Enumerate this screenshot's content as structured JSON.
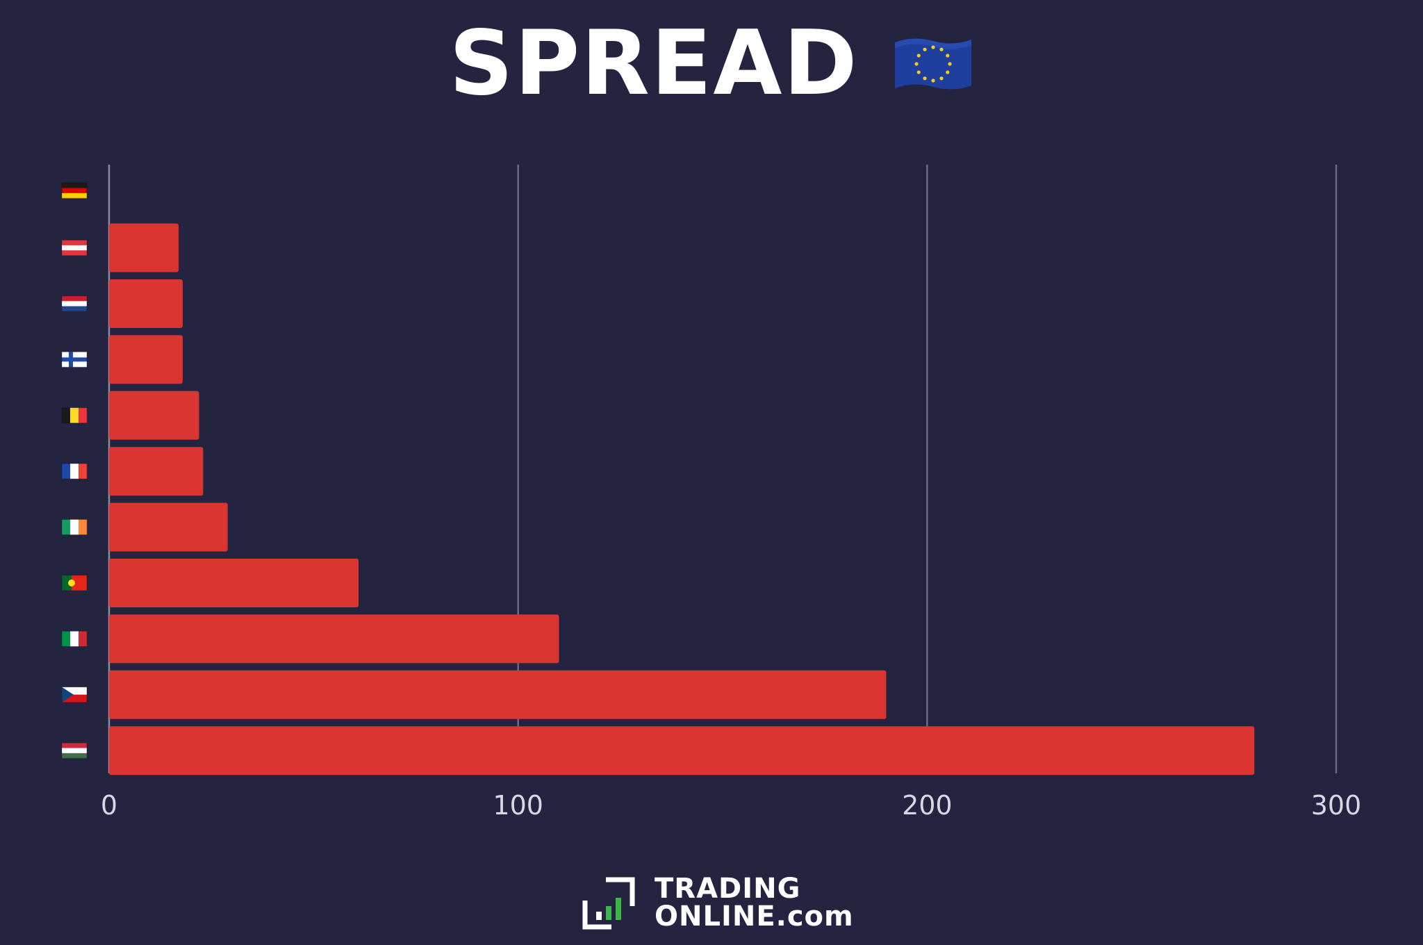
{
  "chart_data": {
    "type": "bar",
    "orientation": "horizontal",
    "title": "SPREAD",
    "title_icon": "eu-flag-icon",
    "categories": [
      "Germany",
      "Austria",
      "Netherlands",
      "Finland",
      "Belgium",
      "France",
      "Ireland",
      "Portugal",
      "Italy",
      "Czech Republic",
      "Hungary"
    ],
    "category_icons": [
      "flag-germany-icon",
      "flag-austria-icon",
      "flag-netherlands-icon",
      "flag-finland-icon",
      "flag-belgium-icon",
      "flag-france-icon",
      "flag-ireland-icon",
      "flag-portugal-icon",
      "flag-italy-icon",
      "flag-czech-icon",
      "flag-hungary-icon"
    ],
    "values": [
      0,
      17,
      18,
      18,
      22,
      23,
      29,
      61,
      110,
      190,
      280
    ],
    "xlim": [
      0,
      300
    ],
    "xticks": [
      "0",
      "100",
      "200",
      "300"
    ],
    "xlabel": "",
    "ylabel": "",
    "grid": "vertical",
    "legend": "none",
    "colors": {
      "background": "#242440",
      "bar": "#db3531",
      "grid": "#6a6a80",
      "text": "#ffffff"
    }
  },
  "logo": {
    "line1": "TRADING",
    "line2": "ONLINE.com",
    "icon": "trading-online-logo-icon",
    "accent": "#3cb54a"
  }
}
